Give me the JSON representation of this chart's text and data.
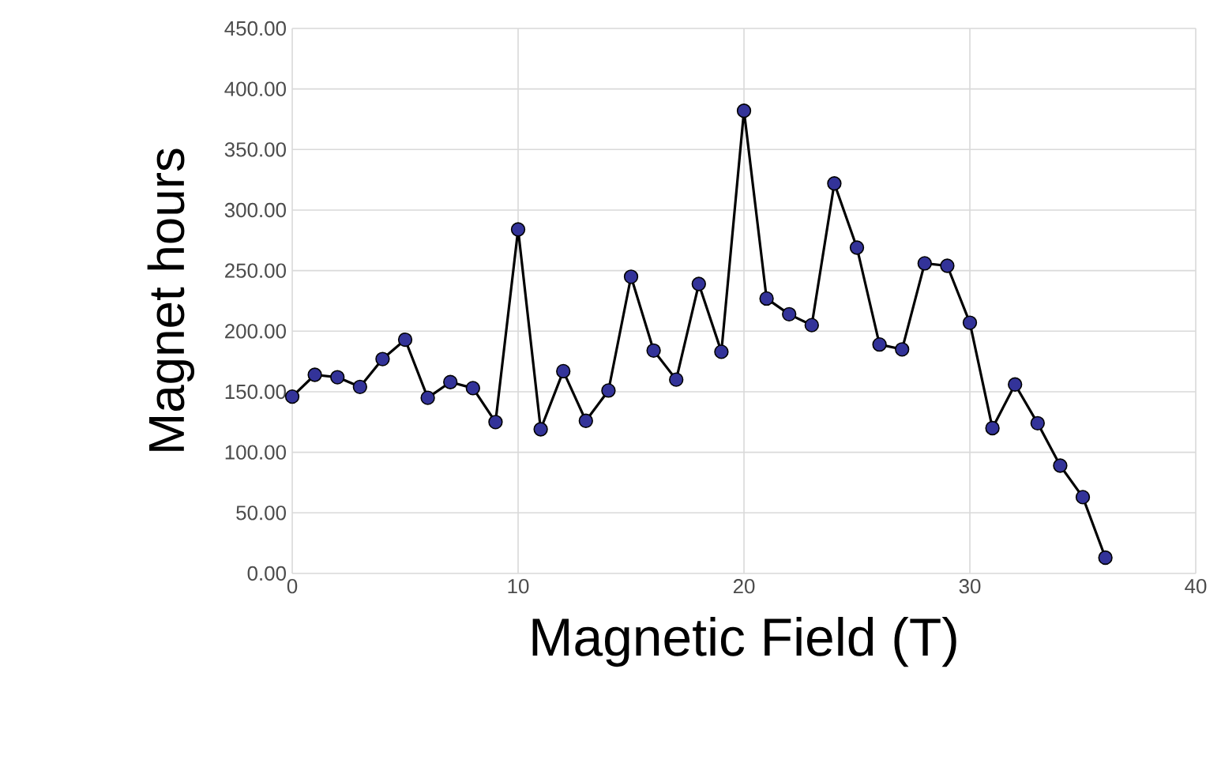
{
  "chart_data": {
    "type": "line",
    "xlabel": "Magnetic Field (T)",
    "ylabel": "Magnet hours",
    "x": [
      0,
      1,
      2,
      3,
      4,
      5,
      6,
      7,
      8,
      9,
      10,
      11,
      12,
      13,
      14,
      15,
      16,
      17,
      18,
      19,
      20,
      21,
      22,
      23,
      24,
      25,
      26,
      27,
      28,
      29,
      30,
      31,
      32,
      33,
      34,
      35,
      36
    ],
    "series": [
      {
        "color": "#333399",
        "values": [
          146,
          164,
          162,
          154,
          177,
          193,
          145,
          158,
          153,
          125,
          284,
          119,
          167,
          126,
          151,
          245,
          184,
          160,
          239,
          183,
          382,
          227,
          214,
          205,
          322,
          269,
          189,
          185,
          256,
          254,
          207,
          120,
          156,
          124,
          89,
          63,
          13
        ]
      }
    ],
    "xlim": [
      0,
      40
    ],
    "xticks": [
      0,
      10,
      20,
      30,
      40
    ],
    "ylim": [
      0,
      450
    ],
    "yticks": [
      {
        "value": 0,
        "label": "0.00"
      },
      {
        "value": 50,
        "label": "50.00"
      },
      {
        "value": 100,
        "label": "100.00"
      },
      {
        "value": 150,
        "label": "150.00"
      },
      {
        "value": 200,
        "label": "200.00"
      },
      {
        "value": 250,
        "label": "250.00"
      },
      {
        "value": 300,
        "label": "300.00"
      },
      {
        "value": 350,
        "label": "350.00"
      },
      {
        "value": 400,
        "label": "400.00"
      },
      {
        "value": 450,
        "label": "450.00"
      }
    ],
    "grid": true,
    "marker": "circle",
    "line_style": "solid"
  }
}
